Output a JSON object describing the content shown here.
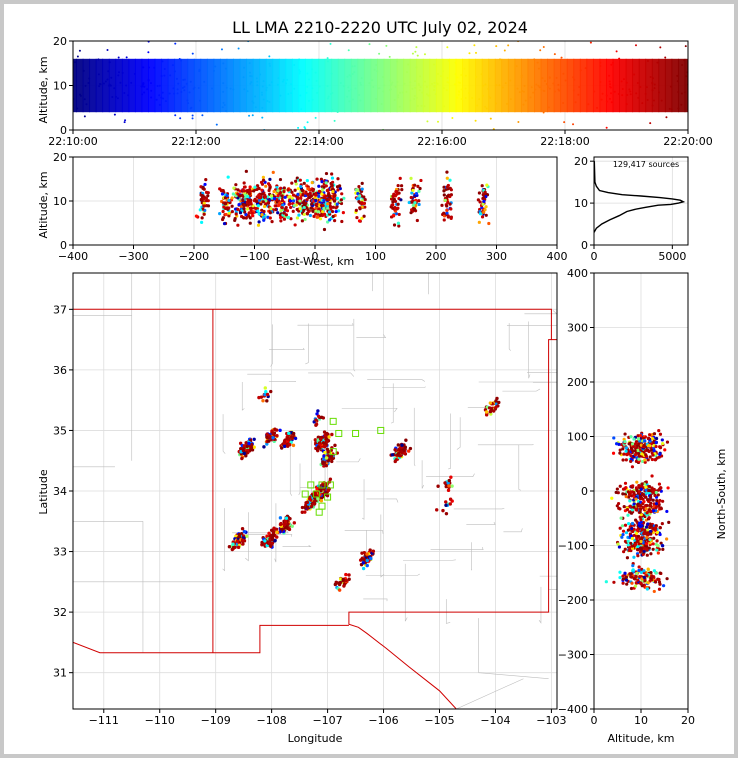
{
  "chart_data": [
    {
      "panel": "time-altitude",
      "type": "scatter",
      "title": "LL LMA 2210-2220 UTC July 02, 2024",
      "ylabel": "Altitude, km",
      "ylim": [
        0,
        20
      ],
      "yticks": [
        0,
        10,
        20
      ],
      "xlim": [
        "22:10:00",
        "22:20:00"
      ],
      "xticks": [
        "22:10:00",
        "22:12:00",
        "22:14:00",
        "22:16:00",
        "22:18:00",
        "22:20:00"
      ],
      "color_scale": "time, blue to dark red",
      "dense_band_km": [
        4,
        16
      ],
      "grid": true
    },
    {
      "panel": "east-west-altitude",
      "type": "scatter",
      "xlabel": "East-West, km",
      "ylabel": "Altitude, km",
      "xlim": [
        -400,
        400
      ],
      "xticks": [
        -400,
        -300,
        -200,
        -100,
        0,
        100,
        200,
        300,
        400
      ],
      "ylim": [
        0,
        20
      ],
      "yticks": [
        0,
        10,
        20
      ],
      "clusters_east_west_km": [
        -185,
        -150,
        -120,
        -90,
        -55,
        -20,
        5,
        25,
        75,
        135,
        165,
        220,
        280
      ],
      "grid": true
    },
    {
      "panel": "altitude-histogram",
      "type": "line",
      "annotation": "129,417 sources",
      "xlim": [
        0,
        6000
      ],
      "xticks": [
        0,
        5000
      ],
      "ylim": [
        0,
        21
      ],
      "yticks": [
        0,
        10,
        20
      ],
      "x": [
        0,
        150,
        500,
        1000,
        1600,
        2100,
        2600,
        3300,
        4100,
        4900,
        5400,
        5700,
        5500,
        5000,
        4200,
        3000,
        1800,
        900,
        350,
        150,
        60,
        20
      ],
      "y": [
        3,
        4,
        5,
        6,
        7,
        8,
        8.5,
        9,
        9.5,
        9.7,
        10,
        10.3,
        10.7,
        11,
        11.3,
        11.7,
        12,
        12.5,
        13,
        14,
        15,
        20
      ]
    },
    {
      "panel": "plan-view",
      "type": "scatter",
      "xlabel": "Longitude",
      "ylabel": "Latitude",
      "xlim": [
        -111.55,
        -102.9
      ],
      "xticks": [
        -111,
        -110,
        -109,
        -108,
        -107,
        -106,
        -105,
        -104,
        -103
      ],
      "ylim": [
        30.4,
        37.6
      ],
      "yticks": [
        31,
        32,
        33,
        34,
        35,
        36,
        37
      ],
      "sensor_markers": [
        [
          -107.3,
          34.1
        ],
        [
          -107.1,
          34.1
        ],
        [
          -106.95,
          34.1
        ],
        [
          -107.2,
          33.95
        ],
        [
          -107.0,
          33.9
        ],
        [
          -107.1,
          33.75
        ],
        [
          -107.15,
          33.65
        ],
        [
          -106.9,
          34.65
        ],
        [
          -106.8,
          34.95
        ],
        [
          -106.5,
          34.95
        ],
        [
          -106.05,
          35.0
        ],
        [
          -106.9,
          35.15
        ],
        [
          -107.4,
          33.95
        ]
      ],
      "clusters": [
        {
          "lon": -108.45,
          "lat": 34.7,
          "n": 120
        },
        {
          "lon": -108.0,
          "lat": 34.9,
          "n": 50
        },
        {
          "lon": -107.7,
          "lat": 34.85,
          "n": 60
        },
        {
          "lon": -107.1,
          "lat": 34.8,
          "n": 140
        },
        {
          "lon": -107.0,
          "lat": 34.55,
          "n": 60
        },
        {
          "lon": -107.1,
          "lat": 34.0,
          "n": 180
        },
        {
          "lon": -107.3,
          "lat": 33.8,
          "n": 90
        },
        {
          "lon": -107.75,
          "lat": 33.45,
          "n": 60
        },
        {
          "lon": -108.05,
          "lat": 33.2,
          "n": 80
        },
        {
          "lon": -108.6,
          "lat": 33.2,
          "n": 70
        },
        {
          "lon": -106.3,
          "lat": 32.9,
          "n": 50
        },
        {
          "lon": -106.75,
          "lat": 32.5,
          "n": 25
        },
        {
          "lon": -105.7,
          "lat": 34.65,
          "n": 90
        },
        {
          "lon": -104.05,
          "lat": 35.4,
          "n": 30
        },
        {
          "lon": -104.85,
          "lat": 34.1,
          "n": 15
        },
        {
          "lon": -104.9,
          "lat": 33.75,
          "n": 10
        },
        {
          "lon": -108.1,
          "lat": 35.6,
          "n": 12
        },
        {
          "lon": -107.2,
          "lat": 35.2,
          "n": 15
        }
      ],
      "state_border": [
        [
          -109.05,
          37.0
        ],
        [
          -103.0,
          37.0
        ],
        [
          -103.0,
          36.5
        ],
        [
          -102.9,
          36.5
        ],
        [
          -103.05,
          36.5
        ],
        [
          -103.05,
          32.0
        ],
        [
          -106.62,
          32.0
        ],
        [
          -106.62,
          31.8
        ],
        [
          -106.45,
          31.75
        ],
        [
          -106.3,
          31.65
        ],
        [
          -105.95,
          31.4
        ],
        [
          -105.55,
          31.1
        ],
        [
          -105.0,
          30.7
        ],
        [
          -104.7,
          30.4
        ]
      ],
      "state_border_west": [
        [
          -109.05,
          37.0
        ],
        [
          -109.05,
          31.33
        ]
      ],
      "southern_border": [
        [
          -111.55,
          31.5
        ],
        [
          -111.07,
          31.33
        ],
        [
          -108.21,
          31.33
        ],
        [
          -108.21,
          31.78
        ],
        [
          -106.62,
          31.78
        ]
      ],
      "grid": true
    },
    {
      "panel": "altitude-north-south",
      "type": "scatter",
      "xlabel": "Altitude, km",
      "ylabel": "North-South, km",
      "xlim": [
        0,
        20
      ],
      "xticks": [
        0,
        10,
        20
      ],
      "ylim": [
        -400,
        400
      ],
      "yticks": [
        400,
        300,
        200,
        100,
        0,
        -100,
        -200,
        -300,
        -400
      ],
      "clusters_north_south_km": [
        90,
        70,
        0,
        -30,
        -70,
        -100,
        -160
      ],
      "grid": true
    }
  ]
}
